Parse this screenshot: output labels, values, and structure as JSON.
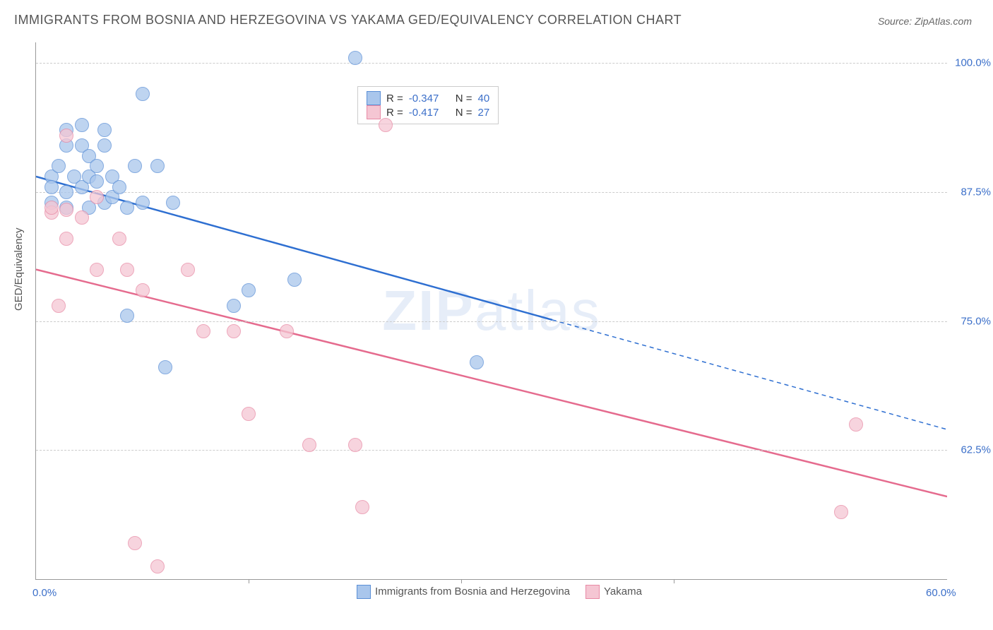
{
  "title": "IMMIGRANTS FROM BOSNIA AND HERZEGOVINA VS YAKAMA GED/EQUIVALENCY CORRELATION CHART",
  "source_label": "Source:",
  "source_name": "ZipAtlas.com",
  "y_axis_label": "GED/Equivalency",
  "watermark_bold": "ZIP",
  "watermark_light": "atlas",
  "chart": {
    "type": "scatter",
    "background_color": "#ffffff",
    "grid_color": "#cccccc",
    "axis_color": "#999999",
    "label_color": "#3b6fc9",
    "text_color": "#555555",
    "label_fontsize": 15,
    "title_fontsize": 18,
    "marker_radius": 9,
    "marker_opacity": 0.75,
    "xlim": [
      0,
      60
    ],
    "ylim": [
      50,
      102
    ],
    "x_ticks": [
      {
        "v": 0,
        "label": "0.0%"
      },
      {
        "v": 60,
        "label": "60.0%"
      }
    ],
    "y_ticks": [
      {
        "v": 62.5,
        "label": "62.5%"
      },
      {
        "v": 75.0,
        "label": "75.0%"
      },
      {
        "v": 87.5,
        "label": "87.5%"
      },
      {
        "v": 100.0,
        "label": "100.0%"
      }
    ],
    "x_inner_ticks": [
      14,
      28,
      42
    ],
    "series": [
      {
        "name": "Immigrants from Bosnia and Herzegovina",
        "R": "-0.347",
        "N": "40",
        "fill_color": "#a9c6ec",
        "stroke_color": "#5b8fd6",
        "line_color": "#2e6fd1",
        "trend": {
          "x1": 0,
          "y1": 89.0,
          "x2": 34,
          "y2": 76.5,
          "x_solid_end": 34,
          "x3": 60,
          "y3": 64.5
        },
        "points": [
          [
            1,
            86.5
          ],
          [
            1,
            89
          ],
          [
            1,
            88
          ],
          [
            1.5,
            90
          ],
          [
            2,
            92
          ],
          [
            2,
            86
          ],
          [
            2,
            87.5
          ],
          [
            2.5,
            89
          ],
          [
            2,
            93.5
          ],
          [
            3,
            94
          ],
          [
            3,
            92
          ],
          [
            3,
            88
          ],
          [
            3.5,
            89
          ],
          [
            3.5,
            86
          ],
          [
            3.5,
            91
          ],
          [
            4,
            90
          ],
          [
            4,
            88.5
          ],
          [
            4.5,
            86.5
          ],
          [
            4.5,
            92
          ],
          [
            4.5,
            93.5
          ],
          [
            5,
            89
          ],
          [
            5,
            87
          ],
          [
            5.5,
            88
          ],
          [
            6,
            86
          ],
          [
            6,
            75.5
          ],
          [
            6.5,
            90
          ],
          [
            7,
            86.5
          ],
          [
            7,
            97
          ],
          [
            8,
            90
          ],
          [
            8.5,
            70.5
          ],
          [
            9,
            86.5
          ],
          [
            13,
            76.5
          ],
          [
            14,
            78
          ],
          [
            17,
            79
          ],
          [
            21,
            100.5
          ],
          [
            29,
            71
          ]
        ]
      },
      {
        "name": "Yakama",
        "R": "-0.417",
        "N": "27",
        "fill_color": "#f5c6d3",
        "stroke_color": "#e88aa5",
        "line_color": "#e56b8e",
        "trend": {
          "x1": 0,
          "y1": 80.0,
          "x2": 60,
          "y2": 58.0,
          "x_solid_end": 60,
          "x3": 60,
          "y3": 58.0
        },
        "points": [
          [
            1,
            85.5
          ],
          [
            1,
            86
          ],
          [
            1.5,
            76.5
          ],
          [
            2,
            83
          ],
          [
            2,
            93
          ],
          [
            2,
            85.8
          ],
          [
            3,
            85
          ],
          [
            4,
            87
          ],
          [
            4,
            80
          ],
          [
            5.5,
            83
          ],
          [
            6,
            80
          ],
          [
            6.5,
            53.5
          ],
          [
            7,
            78
          ],
          [
            8,
            51.2
          ],
          [
            10,
            80
          ],
          [
            11,
            74
          ],
          [
            13,
            74
          ],
          [
            14,
            66
          ],
          [
            16.5,
            74
          ],
          [
            18,
            63
          ],
          [
            21,
            63
          ],
          [
            21.5,
            57
          ],
          [
            23,
            94
          ],
          [
            53,
            56.5
          ],
          [
            54,
            65
          ]
        ]
      }
    ],
    "legend_top": {
      "R_label": "R =",
      "N_label": "N ="
    }
  },
  "legend_bottom_labels": [
    "Immigrants from Bosnia and Herzegovina",
    "Yakama"
  ]
}
